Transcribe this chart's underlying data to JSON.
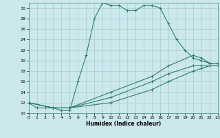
{
  "xlabel": "Humidex (Indice chaleur)",
  "background_color": "#cce8ed",
  "grid_color": "#b0d4d8",
  "line_color": "#2e7d6e",
  "xlim": [
    0,
    23
  ],
  "ylim": [
    10,
    31
  ],
  "xticks": [
    0,
    1,
    2,
    3,
    4,
    5,
    6,
    7,
    8,
    9,
    10,
    11,
    12,
    13,
    14,
    15,
    16,
    17,
    18,
    19,
    20,
    21,
    22,
    23
  ],
  "yticks": [
    10,
    12,
    14,
    16,
    18,
    20,
    22,
    24,
    26,
    28,
    30
  ],
  "line1_x": [
    0,
    1,
    2,
    3,
    4,
    5,
    6,
    7,
    8,
    9,
    10,
    11,
    12,
    13,
    14,
    15,
    16,
    17,
    18,
    19,
    20,
    21,
    22,
    23
  ],
  "line1_y": [
    12,
    11,
    11,
    11,
    10.5,
    10.5,
    16,
    21,
    28,
    31,
    30.5,
    30.5,
    29.5,
    29.5,
    30.5,
    30.5,
    30,
    27,
    24,
    22,
    20.5,
    20,
    19.5,
    19.5
  ],
  "line2_x": [
    0,
    3,
    5,
    10,
    15,
    17,
    20,
    21,
    22,
    23
  ],
  "line2_y": [
    12,
    11,
    11,
    14,
    17,
    19,
    21,
    20.5,
    19.5,
    19.5
  ],
  "line3_x": [
    0,
    3,
    5,
    10,
    15,
    17,
    20,
    21,
    22,
    23
  ],
  "line3_y": [
    12,
    11,
    11,
    13,
    16,
    17.5,
    19,
    19,
    19,
    19
  ],
  "line4_x": [
    0,
    3,
    5,
    10,
    15,
    17,
    20,
    21,
    22,
    23
  ],
  "line4_y": [
    12,
    11,
    11,
    12,
    14.5,
    16,
    18,
    18.5,
    19,
    19
  ]
}
